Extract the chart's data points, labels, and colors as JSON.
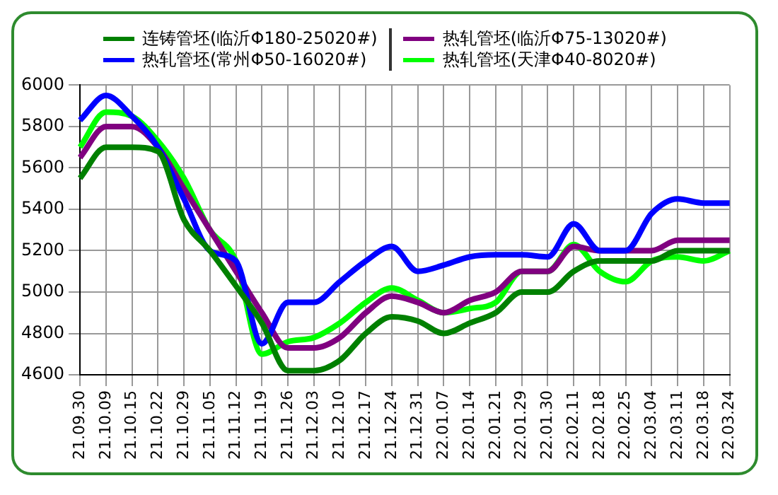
{
  "chart_data": {
    "type": "line",
    "categories": [
      "21.09.30",
      "21.10.09",
      "21.10.15",
      "21.10.22",
      "21.10.29",
      "21.11.05",
      "21.11.12",
      "21.11.19",
      "21.11.26",
      "21.12.03",
      "21.12.10",
      "21.12.17",
      "21.12.24",
      "21.12.31",
      "22.01.07",
      "22.01.14",
      "22.01.21",
      "22.01.29",
      "22.01.30",
      "22.02.11",
      "22.02.18",
      "22.02.25",
      "22.03.04",
      "22.03.11",
      "22.03.18",
      "22.03.24"
    ],
    "series": [
      {
        "name": "连铸管坯(临沂Φ180-25020#)",
        "color": "#008000",
        "values": [
          5550,
          5700,
          5700,
          5680,
          5350,
          5200,
          5030,
          4850,
          4620,
          4620,
          4670,
          4800,
          4880,
          4860,
          4800,
          4850,
          4900,
          5000,
          5000,
          5100,
          5150,
          5150,
          5150,
          5200,
          5200,
          5200
        ]
      },
      {
        "name": "热轧管坯(常州Φ50-16020#)",
        "color": "#0000ff",
        "values": [
          5830,
          5950,
          5850,
          5700,
          5450,
          5200,
          5150,
          4750,
          4950,
          4950,
          5050,
          5150,
          5220,
          5100,
          5130,
          5170,
          5180,
          5180,
          5170,
          5330,
          5200,
          5200,
          5380,
          5450,
          5430,
          5430
        ]
      },
      {
        "name": "热轧管坯(临沂Φ75-13020#)",
        "color": "#800080",
        "values": [
          5650,
          5800,
          5800,
          5700,
          5500,
          5300,
          5100,
          4900,
          4730,
          4730,
          4780,
          4900,
          4980,
          4950,
          4900,
          4960,
          5000,
          5100,
          5100,
          5220,
          5200,
          5200,
          5200,
          5250,
          5250,
          5250
        ]
      },
      {
        "name": "热轧管坯(天津Φ40-8020#)",
        "color": "#00ff00",
        "values": [
          5700,
          5870,
          5850,
          5730,
          5550,
          5300,
          5150,
          4700,
          4760,
          4780,
          4850,
          4950,
          5020,
          4960,
          4900,
          4920,
          4950,
          5100,
          5100,
          5230,
          5100,
          5050,
          5150,
          5170,
          5150,
          5200
        ]
      }
    ],
    "ylim": [
      4600,
      6000
    ],
    "yticks": [
      4600,
      4800,
      5000,
      5200,
      5400,
      5600,
      5800,
      6000
    ],
    "grid": true,
    "legend": "top",
    "marker": "none",
    "line_style": "solid"
  }
}
